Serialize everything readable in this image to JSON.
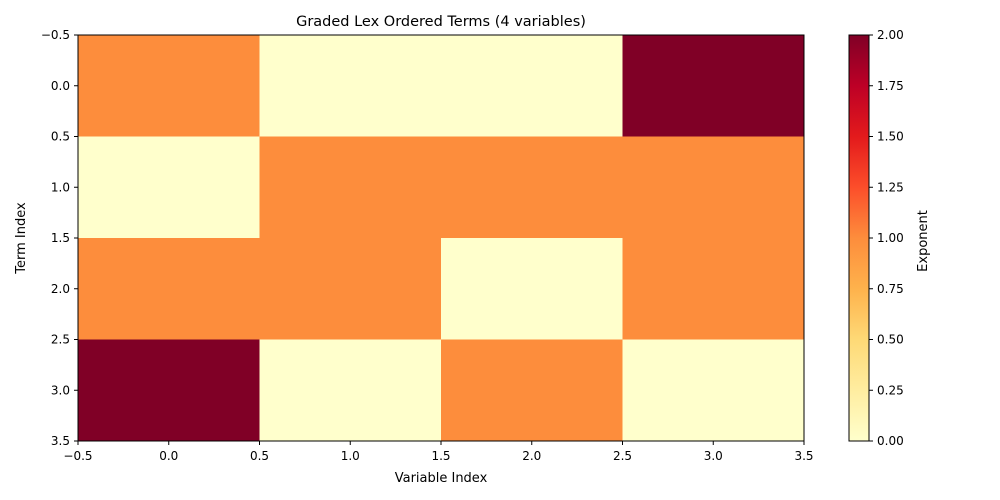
{
  "chart_data": {
    "type": "heatmap",
    "title": "Graded Lex Ordered Terms (4 variables)",
    "xlabel": "Variable Index",
    "ylabel": "Term Index",
    "xlim": [
      -0.5,
      3.5
    ],
    "ylim": [
      3.5,
      -0.5
    ],
    "y_inverted": true,
    "x_ticks": [
      "−0.5",
      "0.0",
      "0.5",
      "1.0",
      "1.5",
      "2.0",
      "2.5",
      "3.0",
      "3.5"
    ],
    "y_ticks": [
      "−0.5",
      "0.0",
      "0.5",
      "1.0",
      "1.5",
      "2.0",
      "2.5",
      "3.0",
      "3.5"
    ],
    "matrix": [
      [
        1,
        0,
        0,
        2
      ],
      [
        0,
        1,
        1,
        1
      ],
      [
        1,
        1,
        0,
        1
      ],
      [
        2,
        0,
        1,
        0
      ]
    ],
    "colormap": "YlOrRd",
    "vmin": 0,
    "vmax": 2,
    "colorbar": {
      "label": "Exponent",
      "ticks": [
        "0.00",
        "0.25",
        "0.50",
        "0.75",
        "1.00",
        "1.25",
        "1.50",
        "1.75",
        "2.00"
      ],
      "colors": {
        "0.00": "#ffffcc",
        "0.25": "#ffeda0",
        "0.50": "#fed976",
        "0.75": "#feb24c",
        "1.00": "#fd8d3c",
        "1.25": "#fc4e2a",
        "1.50": "#e31a1c",
        "1.75": "#bd0026",
        "2.00": "#800026"
      }
    }
  }
}
